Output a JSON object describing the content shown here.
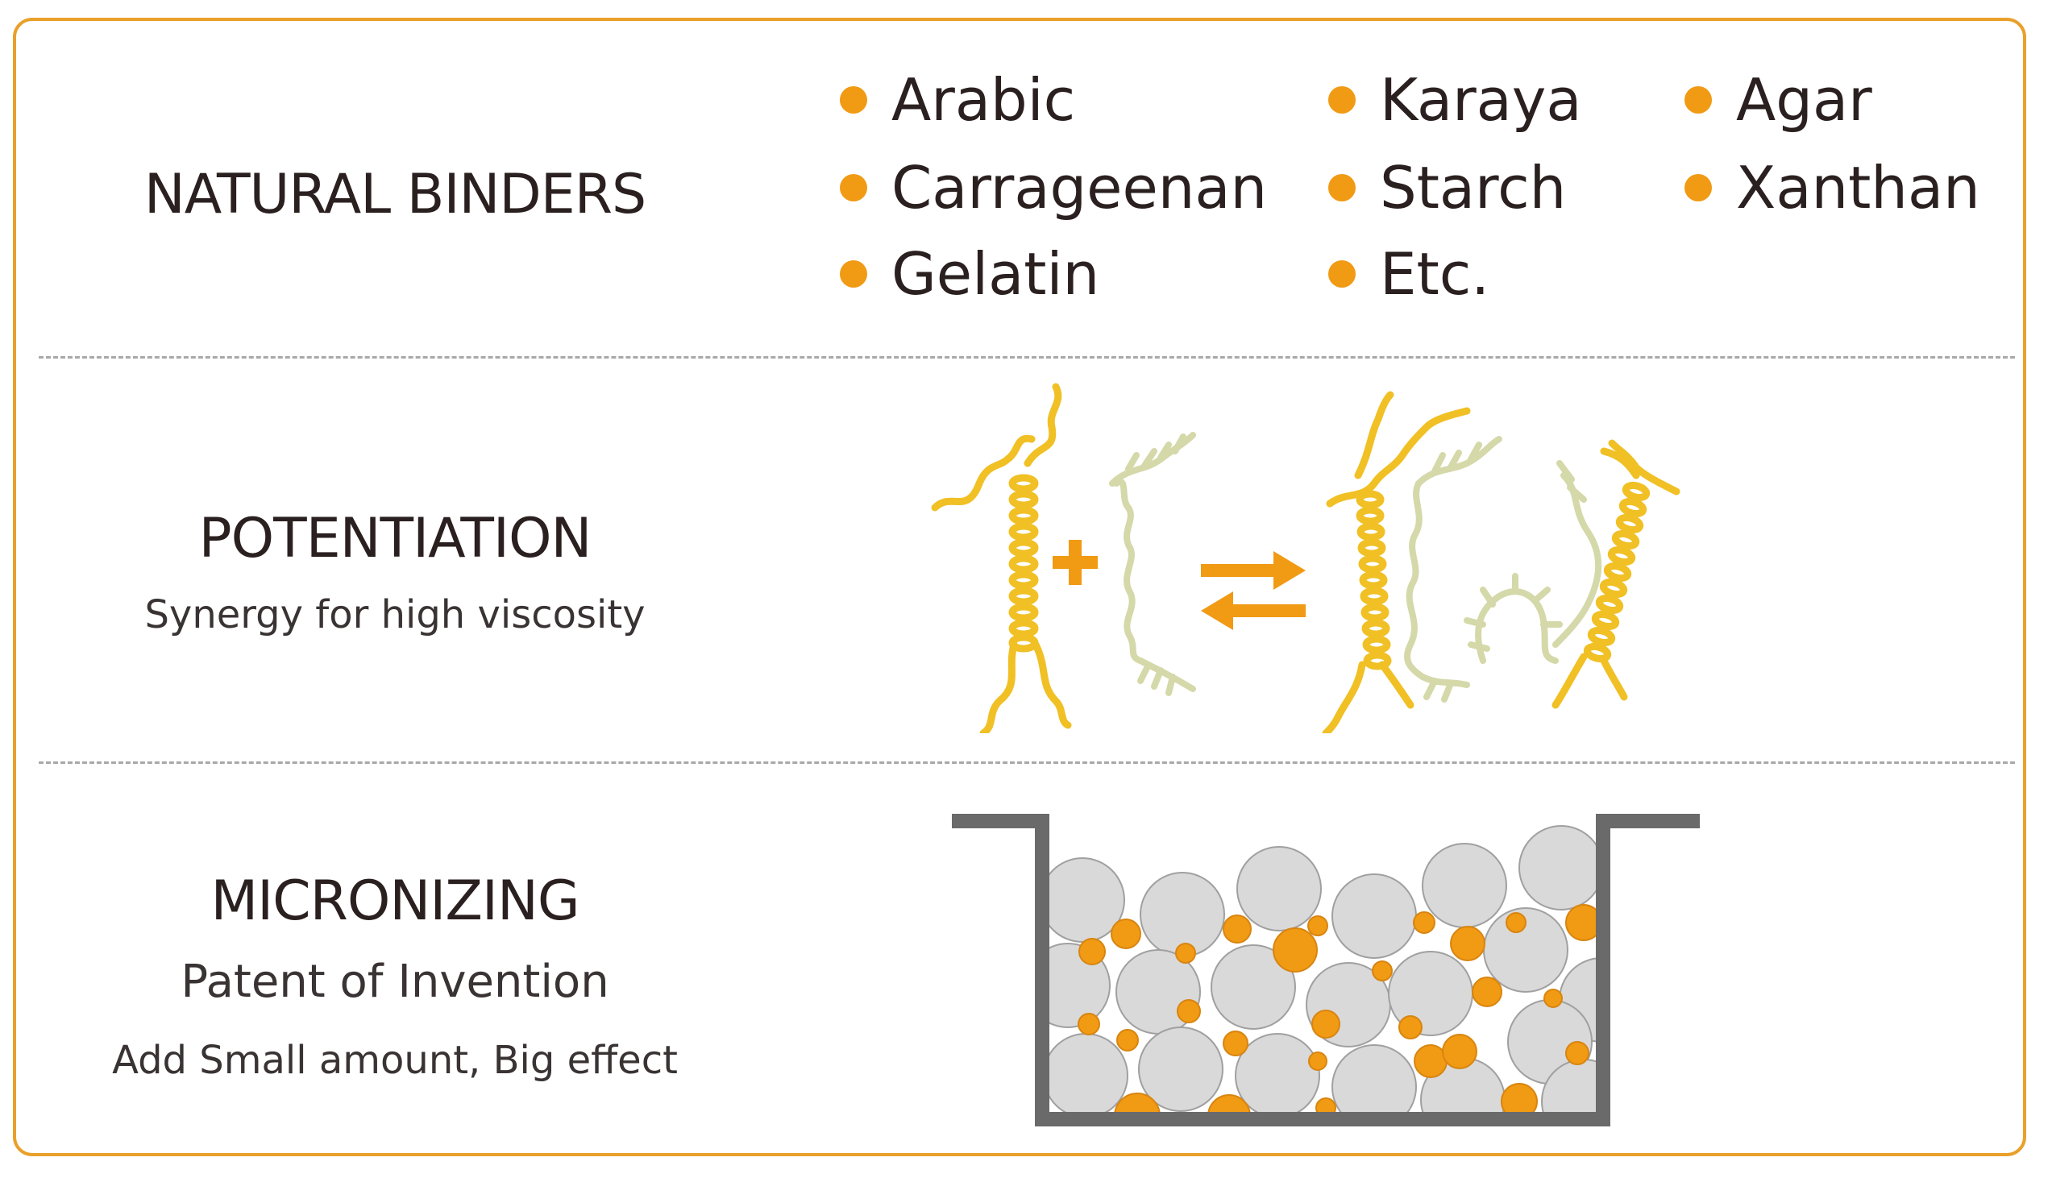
{
  "colors": {
    "frame": "#e9a02a",
    "bullet": "#f19a14",
    "polymer_yellow": "#f0c025",
    "polymer_green": "#d5d8a8",
    "arrow": "#f19a14",
    "particle_gray": "#d9d9d9",
    "particle_orange": "#f19a14",
    "container": "#6a6a6a"
  },
  "natural_binders": {
    "title": "NATURAL BINDERS",
    "items": [
      "Arabic",
      "Carrageenan",
      "Gelatin",
      "Karaya",
      "Starch",
      "Etc.",
      "Agar",
      "Xanthan"
    ]
  },
  "potentiation": {
    "title": "POTENTIATION",
    "subtitle": "Synergy for high viscosity",
    "icons": [
      "polymer-helix-icon",
      "plus-icon",
      "polymer-branch-icon",
      "equilibrium-arrows-icon",
      "polymer-network-icon"
    ]
  },
  "micronizing": {
    "title": "MICRONIZING",
    "subtitle": "Patent of Invention",
    "note": "Add Small amount, Big effect",
    "icons": [
      "particle-container-icon"
    ]
  }
}
